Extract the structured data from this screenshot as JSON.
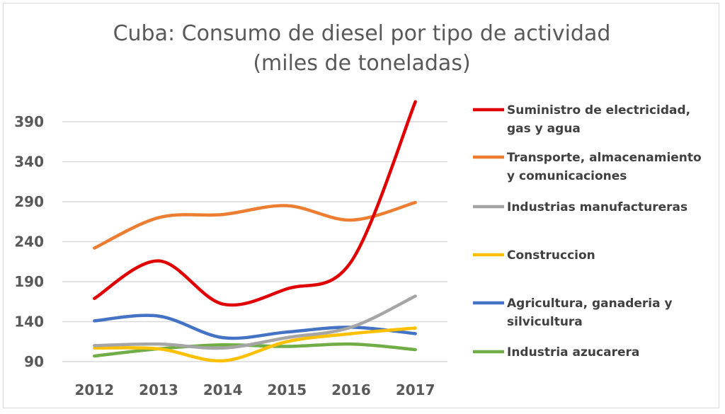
{
  "chart_data": {
    "type": "line",
    "title_line1": "Cuba: Consumo de diesel por tipo de actividad",
    "title_line2": "(miles de toneladas)",
    "x": [
      "2012",
      "2013",
      "2014",
      "2015",
      "2016",
      "2017"
    ],
    "y_ticks": [
      "90",
      "140",
      "190",
      "240",
      "290",
      "340",
      "390"
    ],
    "ylim": [
      90,
      420
    ],
    "grid": "horizontal",
    "legend_position": "right",
    "series": [
      {
        "name": "Suministro de electricidad, gas y agua",
        "name_lines": [
          "Suministro de electricidad,",
          "gas y agua"
        ],
        "color": "#e00000",
        "values": [
          169,
          216,
          162,
          181,
          215,
          415
        ]
      },
      {
        "name": "Transporte, almacenamiento y comunicaciones",
        "name_lines": [
          "Transporte, almacenamiento",
          "y comunicaciones"
        ],
        "color": "#ed7d31",
        "values": [
          232,
          270,
          274,
          285,
          267,
          289
        ]
      },
      {
        "name": "Industrias manufactureras",
        "name_lines": [
          "Industrias manufactureras"
        ],
        "color": "#a5a5a5",
        "values": [
          110,
          112,
          107,
          120,
          133,
          172
        ]
      },
      {
        "name": "Construccion",
        "name_lines": [
          "Construccion"
        ],
        "color": "#ffc000",
        "values": [
          107,
          106,
          91,
          115,
          125,
          132
        ]
      },
      {
        "name": "Agricultura, ganaderia y silvicultura",
        "name_lines": [
          "Agricultura, ganaderia y",
          "silvicultura"
        ],
        "color": "#4472c4",
        "values": [
          141,
          147,
          120,
          127,
          133,
          125
        ]
      },
      {
        "name": "Industria azucarera",
        "name_lines": [
          "Industria azucarera"
        ],
        "color": "#70ad47",
        "values": [
          97,
          106,
          111,
          109,
          112,
          105
        ]
      }
    ]
  }
}
